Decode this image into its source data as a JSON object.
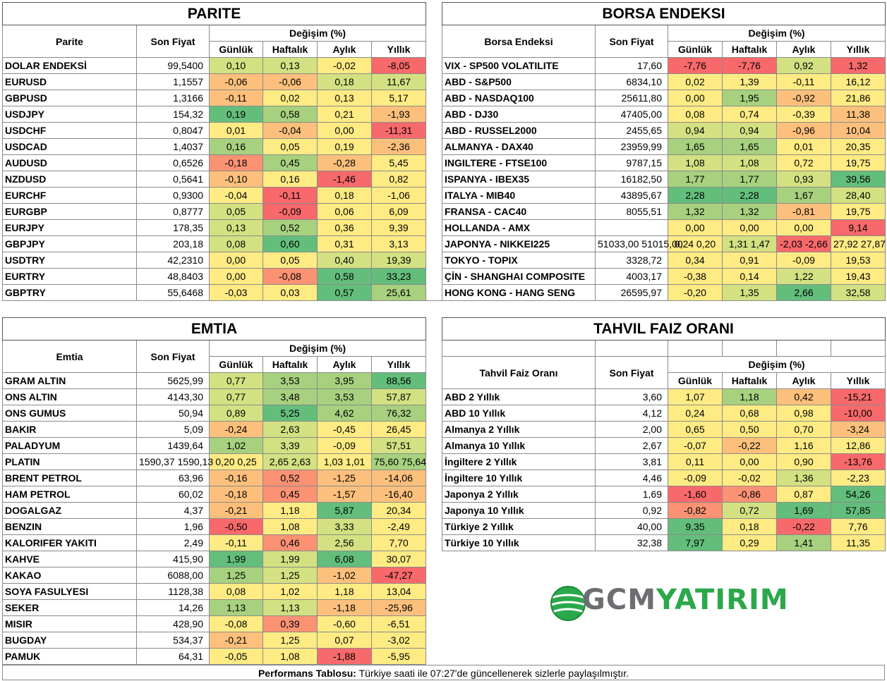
{
  "colors": {
    "dark_red": "#f8696b",
    "red": "#fa9273",
    "orange": "#fdc07c",
    "yellow": "#ffeb84",
    "light_green": "#d3e182",
    "green": "#a7d17f",
    "dark_green": "#63be7b"
  },
  "parite": {
    "title": "PARITE",
    "col_name": "Parite",
    "col_price": "Son Fiyat",
    "col_change": "Değişim (%)",
    "periods": [
      "Günlük",
      "Haftalık",
      "Aylık",
      "Yıllık"
    ],
    "rows": [
      {
        "name": "DOLAR ENDEKSİ",
        "price": "99,5400",
        "d": [
          "0,10",
          "0,13",
          "-0,02",
          "-8,05"
        ],
        "c": [
          "light_green",
          "light_green",
          "yellow",
          "dark_red"
        ]
      },
      {
        "name": "EURUSD",
        "price": "1,1557",
        "d": [
          "-0,06",
          "-0,06",
          "0,18",
          "11,67"
        ],
        "c": [
          "orange",
          "orange",
          "light_green",
          "light_green"
        ]
      },
      {
        "name": "GBPUSD",
        "price": "1,3166",
        "d": [
          "-0,11",
          "0,02",
          "0,13",
          "5,17"
        ],
        "c": [
          "orange",
          "yellow",
          "yellow",
          "yellow"
        ]
      },
      {
        "name": "USDJPY",
        "price": "154,32",
        "d": [
          "0,19",
          "0,58",
          "0,21",
          "-1,93"
        ],
        "c": [
          "dark_green",
          "green",
          "yellow",
          "orange"
        ]
      },
      {
        "name": "USDCHF",
        "price": "0,8047",
        "d": [
          "0,01",
          "-0,04",
          "0,00",
          "-11,31"
        ],
        "c": [
          "yellow",
          "orange",
          "yellow",
          "dark_red"
        ]
      },
      {
        "name": "USDCAD",
        "price": "1,4037",
        "d": [
          "0,16",
          "0,05",
          "0,19",
          "-2,36"
        ],
        "c": [
          "green",
          "yellow",
          "yellow",
          "orange"
        ]
      },
      {
        "name": "AUDUSD",
        "price": "0,6526",
        "d": [
          "-0,18",
          "0,45",
          "-0,28",
          "5,45"
        ],
        "c": [
          "red",
          "green",
          "orange",
          "yellow"
        ]
      },
      {
        "name": "NZDUSD",
        "price": "0,5641",
        "d": [
          "-0,10",
          "0,16",
          "-1,46",
          "0,82"
        ],
        "c": [
          "orange",
          "yellow",
          "dark_red",
          "yellow"
        ]
      },
      {
        "name": "EURCHF",
        "price": "0,9300",
        "d": [
          "-0,04",
          "-0,11",
          "0,18",
          "-1,06"
        ],
        "c": [
          "yellow",
          "dark_red",
          "yellow",
          "yellow"
        ]
      },
      {
        "name": "EURGBP",
        "price": "0,8777",
        "d": [
          "0,05",
          "-0,09",
          "0,06",
          "6,09"
        ],
        "c": [
          "light_green",
          "dark_red",
          "yellow",
          "yellow"
        ]
      },
      {
        "name": "EURJPY",
        "price": "178,35",
        "d": [
          "0,13",
          "0,52",
          "0,36",
          "9,39"
        ],
        "c": [
          "light_green",
          "green",
          "yellow",
          "yellow"
        ]
      },
      {
        "name": "GBPJPY",
        "price": "203,18",
        "d": [
          "0,08",
          "0,60",
          "0,31",
          "3,13"
        ],
        "c": [
          "light_green",
          "dark_green",
          "yellow",
          "yellow"
        ]
      },
      {
        "name": "USDTRY",
        "price": "42,2310",
        "d": [
          "0,00",
          "0,05",
          "0,40",
          "19,39"
        ],
        "c": [
          "yellow",
          "yellow",
          "light_green",
          "light_green"
        ]
      },
      {
        "name": "EURTRY",
        "price": "48,8403",
        "d": [
          "0,00",
          "-0,08",
          "0,58",
          "33,23"
        ],
        "c": [
          "yellow",
          "red",
          "dark_green",
          "dark_green"
        ]
      },
      {
        "name": "GBPTRY",
        "price": "55,6468",
        "d": [
          "-0,03",
          "0,03",
          "0,57",
          "25,61"
        ],
        "c": [
          "yellow",
          "yellow",
          "dark_green",
          "green"
        ]
      }
    ]
  },
  "borsa": {
    "title": "BORSA ENDEKSI",
    "col_name": "Borsa Endeksi",
    "col_price": "Son Fiyat",
    "col_change": "Değişim (%)",
    "periods": [
      "Günlük",
      "Haftalık",
      "Aylık",
      "Yıllık"
    ],
    "rows": [
      {
        "name": "VIX  - SP500 VOLATILITE",
        "price": "17,60",
        "d": [
          "-7,76",
          "-7,76",
          "0,92",
          "1,32"
        ],
        "c": [
          "dark_red",
          "dark_red",
          "light_green",
          "dark_red"
        ]
      },
      {
        "name": "ABD - S&P500",
        "price": "6834,10",
        "d": [
          "0,02",
          "1,39",
          "-0,11",
          "16,12"
        ],
        "c": [
          "yellow",
          "yellow",
          "yellow",
          "yellow"
        ]
      },
      {
        "name": "ABD - NASDAQ100",
        "price": "25611,80",
        "d": [
          "0,00",
          "1,95",
          "-0,92",
          "21,86"
        ],
        "c": [
          "yellow",
          "green",
          "orange",
          "yellow"
        ]
      },
      {
        "name": "ABD - DJ30",
        "price": "47405,00",
        "d": [
          "0,08",
          "0,74",
          "-0,39",
          "11,38"
        ],
        "c": [
          "yellow",
          "yellow",
          "yellow",
          "orange"
        ]
      },
      {
        "name": "ABD - RUSSEL2000",
        "price": "2455,65",
        "d": [
          "0,94",
          "0,94",
          "-0,96",
          "10,04"
        ],
        "c": [
          "light_green",
          "light_green",
          "orange",
          "orange"
        ]
      },
      {
        "name": "ALMANYA - DAX40",
        "price": "23959,99",
        "d": [
          "1,65",
          "1,65",
          "0,01",
          "20,35"
        ],
        "c": [
          "green",
          "green",
          "yellow",
          "yellow"
        ]
      },
      {
        "name": "INGILTERE - FTSE100",
        "price": "9787,15",
        "d": [
          "1,08",
          "1,08",
          "0,72",
          "19,75"
        ],
        "c": [
          "light_green",
          "light_green",
          "yellow",
          "yellow"
        ]
      },
      {
        "name": "ISPANYA - IBEX35",
        "price": "16182,50",
        "d": [
          "1,77",
          "1,77",
          "0,93",
          "39,56"
        ],
        "c": [
          "green",
          "green",
          "light_green",
          "dark_green"
        ]
      },
      {
        "name": "ITALYA - MIB40",
        "price": "43895,67",
        "d": [
          "2,28",
          "2,28",
          "1,67",
          "28,40"
        ],
        "c": [
          "dark_green",
          "dark_green",
          "green",
          "light_green"
        ]
      },
      {
        "name": "FRANSA - CAC40",
        "price": "8055,51",
        "d": [
          "1,32",
          "1,32",
          "-0,81",
          "19,75"
        ],
        "c": [
          "green",
          "green",
          "orange",
          "yellow"
        ]
      },
      {
        "name": "HOLLANDA - AMX",
        "price": "",
        "d": [
          "0,00",
          "0,00",
          "0,00",
          "9,14"
        ],
        "c": [
          "yellow",
          "yellow",
          "yellow",
          "dark_red"
        ]
      },
      {
        "name": "JAPONYA - NIKKEI225",
        "price": "51033,00 51015,00",
        "d": [
          "0,24 0,20",
          "1,31 1,47",
          "-2,03 -2,66",
          "27,92 27,87"
        ],
        "c": [
          "yellow",
          "light_green",
          "dark_red",
          "yellow"
        ]
      },
      {
        "name": "TOKYO - TOPIX",
        "price": "3328,72",
        "d": [
          "0,34",
          "0,91",
          "-0,09",
          "19,53"
        ],
        "c": [
          "yellow",
          "yellow",
          "yellow",
          "yellow"
        ]
      },
      {
        "name": "ÇİN - SHANGHAI COMPOSITE",
        "price": "4003,17",
        "d": [
          "-0,38",
          "0,14",
          "1,22",
          "19,43"
        ],
        "c": [
          "yellow",
          "yellow",
          "light_green",
          "yellow"
        ]
      },
      {
        "name": "HONG KONG - HANG SENG",
        "price": "26595,97",
        "d": [
          "-0,20",
          "1,35",
          "2,66",
          "32,58"
        ],
        "c": [
          "yellow",
          "light_green",
          "dark_green",
          "light_green"
        ]
      }
    ]
  },
  "emtia": {
    "title": "EMTIA",
    "col_name": "Emtia",
    "col_price": "Son Fiyat",
    "col_change": "Değişim (%)",
    "periods": [
      "Günlük",
      "Haftalık",
      "Aylık",
      "Yıllık"
    ],
    "rows": [
      {
        "name": "GRAM ALTIN",
        "price": "5625,99",
        "d": [
          "0,77",
          "3,53",
          "3,95",
          "88,56"
        ],
        "c": [
          "light_green",
          "green",
          "green",
          "dark_green"
        ]
      },
      {
        "name": "ONS ALTIN",
        "price": "4143,30",
        "d": [
          "0,77",
          "3,48",
          "3,53",
          "57,87"
        ],
        "c": [
          "light_green",
          "green",
          "green",
          "light_green"
        ]
      },
      {
        "name": "ONS GUMUS",
        "price": "50,94",
        "d": [
          "0,89",
          "5,25",
          "4,62",
          "76,32"
        ],
        "c": [
          "light_green",
          "dark_green",
          "green",
          "green"
        ]
      },
      {
        "name": "BAKIR",
        "price": "5,09",
        "d": [
          "-0,24",
          "2,63",
          "-0,45",
          "26,45"
        ],
        "c": [
          "orange",
          "light_green",
          "yellow",
          "yellow"
        ]
      },
      {
        "name": "PALADYUM",
        "price": "1439,64",
        "d": [
          "1,02",
          "3,39",
          "-0,09",
          "57,51"
        ],
        "c": [
          "green",
          "light_green",
          "yellow",
          "light_green"
        ]
      },
      {
        "name": "PLATIN",
        "price": "1590,37 1590,13",
        "d": [
          "0,20 0,25",
          "2,65 2,63",
          "1,03 1,01",
          "75,60 75,64"
        ],
        "c": [
          "yellow",
          "light_green",
          "yellow",
          "green"
        ]
      },
      {
        "name": "BRENT PETROL",
        "price": "63,96",
        "d": [
          "-0,16",
          "0,52",
          "-1,25",
          "-14,06"
        ],
        "c": [
          "orange",
          "red",
          "orange",
          "orange"
        ]
      },
      {
        "name": "HAM PETROL",
        "price": "60,02",
        "d": [
          "-0,18",
          "0,45",
          "-1,57",
          "-16,40"
        ],
        "c": [
          "orange",
          "red",
          "orange",
          "orange"
        ]
      },
      {
        "name": "DOGALGAZ",
        "price": "4,37",
        "d": [
          "-0,21",
          "1,18",
          "5,87",
          "20,34"
        ],
        "c": [
          "orange",
          "yellow",
          "dark_green",
          "yellow"
        ]
      },
      {
        "name": "BENZIN",
        "price": "1,96",
        "d": [
          "-0,50",
          "1,08",
          "3,33",
          "-2,49"
        ],
        "c": [
          "dark_red",
          "yellow",
          "light_green",
          "yellow"
        ]
      },
      {
        "name": "KALORIFER YAKITI",
        "price": "2,49",
        "d": [
          "-0,11",
          "0,46",
          "2,56",
          "7,70"
        ],
        "c": [
          "yellow",
          "red",
          "light_green",
          "yellow"
        ]
      },
      {
        "name": "KAHVE",
        "price": "415,90",
        "d": [
          "1,99",
          "1,99",
          "6,08",
          "30,07"
        ],
        "c": [
          "dark_green",
          "light_green",
          "dark_green",
          "yellow"
        ]
      },
      {
        "name": "KAKAO",
        "price": "6088,00",
        "d": [
          "1,25",
          "1,25",
          "-1,02",
          "-47,27"
        ],
        "c": [
          "green",
          "light_green",
          "orange",
          "dark_red"
        ]
      },
      {
        "name": "SOYA FASULYESI",
        "price": "1128,38",
        "d": [
          "0,08",
          "1,02",
          "1,18",
          "13,04"
        ],
        "c": [
          "yellow",
          "yellow",
          "yellow",
          "yellow"
        ]
      },
      {
        "name": "SEKER",
        "price": "14,26",
        "d": [
          "1,13",
          "1,13",
          "-1,18",
          "-25,96"
        ],
        "c": [
          "green",
          "light_green",
          "orange",
          "orange"
        ]
      },
      {
        "name": "MISIR",
        "price": "428,90",
        "d": [
          "-0,08",
          "0,39",
          "-0,60",
          "-6,51"
        ],
        "c": [
          "yellow",
          "red",
          "yellow",
          "yellow"
        ]
      },
      {
        "name": "BUGDAY",
        "price": "534,37",
        "d": [
          "-0,21",
          "1,25",
          "0,07",
          "-3,02"
        ],
        "c": [
          "orange",
          "yellow",
          "yellow",
          "yellow"
        ]
      },
      {
        "name": "PAMUK",
        "price": "64,31",
        "d": [
          "-0,05",
          "1,08",
          "-1,88",
          "-5,95"
        ],
        "c": [
          "yellow",
          "yellow",
          "dark_red",
          "yellow"
        ]
      }
    ]
  },
  "tahvil": {
    "title": "TAHVIL FAIZ ORANI",
    "col_name": "Tahvil Faiz Oranı",
    "col_price": "Son Fiyat",
    "col_change": "Değişim (%)",
    "periods": [
      "Günlük",
      "Haftalık",
      "Aylık",
      "Yıllık"
    ],
    "rows": [
      {
        "name": "ABD 2 Yıllık",
        "price": "3,60",
        "d": [
          "1,07",
          "1,18",
          "0,42",
          "-15,21"
        ],
        "c": [
          "yellow",
          "green",
          "orange",
          "dark_red"
        ]
      },
      {
        "name": "ABD 10 Yıllık",
        "price": "4,12",
        "d": [
          "0,24",
          "0,68",
          "0,98",
          "-10,00"
        ],
        "c": [
          "yellow",
          "yellow",
          "yellow",
          "dark_red"
        ]
      },
      {
        "name": "Almanya 2 Yıllık",
        "price": "2,00",
        "d": [
          "0,65",
          "0,50",
          "0,70",
          "-3,24"
        ],
        "c": [
          "yellow",
          "yellow",
          "yellow",
          "orange"
        ]
      },
      {
        "name": "Almanya 10 Yıllık",
        "price": "2,67",
        "d": [
          "-0,07",
          "-0,22",
          "1,16",
          "12,86"
        ],
        "c": [
          "yellow",
          "orange",
          "yellow",
          "yellow"
        ]
      },
      {
        "name": "İngiltere 2 Yıllık",
        "price": "3,81",
        "d": [
          "0,11",
          "0,00",
          "0,90",
          "-13,76"
        ],
        "c": [
          "yellow",
          "yellow",
          "yellow",
          "dark_red"
        ]
      },
      {
        "name": "İngiltere 10 Yıllık",
        "price": "4,46",
        "d": [
          "-0,09",
          "-0,02",
          "1,36",
          "-2,23"
        ],
        "c": [
          "yellow",
          "yellow",
          "light_green",
          "yellow"
        ]
      },
      {
        "name": "Japonya 2 Yıllık",
        "price": "1,69",
        "d": [
          "-1,60",
          "-0,86",
          "0,87",
          "54,26"
        ],
        "c": [
          "dark_red",
          "red",
          "yellow",
          "dark_green"
        ]
      },
      {
        "name": "Japonya 10 Yıllık",
        "price": "0,92",
        "d": [
          "-0,82",
          "0,72",
          "1,69",
          "57,85"
        ],
        "c": [
          "red",
          "light_green",
          "dark_green",
          "dark_green"
        ]
      },
      {
        "name": "Türkiye 2 Yıllık",
        "price": "40,00",
        "d": [
          "9,35",
          "0,18",
          "-0,22",
          "7,76"
        ],
        "c": [
          "dark_green",
          "yellow",
          "dark_red",
          "yellow"
        ]
      },
      {
        "name": "Türkiye 10 Yıllık",
        "price": "32,38",
        "d": [
          "7,97",
          "0,29",
          "1,41",
          "11,35"
        ],
        "c": [
          "dark_green",
          "yellow",
          "green",
          "yellow"
        ]
      }
    ]
  },
  "logo": {
    "gcm": "GCM",
    "yatirim": "YATIRIM"
  },
  "footer": {
    "label": "Performans Tablosu:",
    "text": " Türkiye saati ile 07:27'de güncellenerek sizlerle paylaşılmıştır."
  }
}
